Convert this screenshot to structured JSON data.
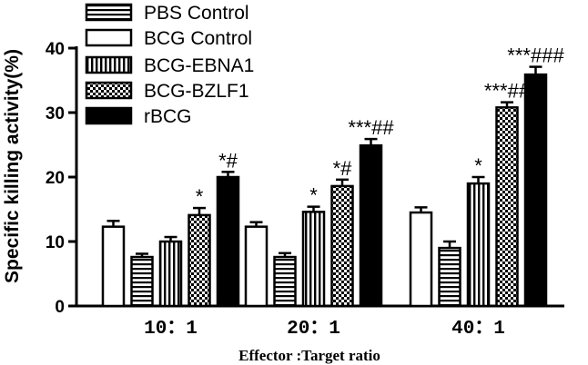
{
  "chart_data": {
    "type": "bar",
    "title": "",
    "xlabel": "Effector :Target ratio",
    "ylabel": "Specific killing activity(%)",
    "ylim": [
      0,
      40
    ],
    "yticks": [
      0,
      10,
      20,
      30,
      40
    ],
    "categories": [
      "10：1",
      "20：1",
      "40：1"
    ],
    "series": [
      {
        "name": "BCG Control",
        "pattern": "white",
        "values": [
          12.3,
          12.3,
          14.5
        ],
        "errors": [
          0.9,
          0.7,
          0.8
        ],
        "annotations": [
          "",
          "",
          ""
        ]
      },
      {
        "name": "PBS Control",
        "pattern": "horizontal-lines",
        "values": [
          7.6,
          7.6,
          9.0
        ],
        "errors": [
          0.5,
          0.6,
          1.0
        ],
        "annotations": [
          "",
          "",
          ""
        ]
      },
      {
        "name": "BCG-EBNA1",
        "pattern": "vertical-lines",
        "values": [
          10.0,
          14.6,
          19.0
        ],
        "errors": [
          0.7,
          0.8,
          1.0
        ],
        "annotations": [
          "",
          "*",
          "*"
        ]
      },
      {
        "name": "BCG-BZLF1",
        "pattern": "checker",
        "values": [
          14.1,
          18.6,
          30.8
        ],
        "errors": [
          1.1,
          1.0,
          0.8
        ],
        "annotations": [
          "*",
          "*#",
          "***##"
        ]
      },
      {
        "name": "rBCG",
        "pattern": "black",
        "values": [
          20.0,
          24.9,
          35.9
        ],
        "errors": [
          0.8,
          1.0,
          1.2
        ],
        "annotations": [
          "*#",
          "***##",
          "***###"
        ]
      }
    ],
    "legend_order": [
      "PBS Control",
      "BCG Control",
      "BCG-EBNA1",
      "BCG-BZLF1",
      "rBCG"
    ],
    "legend_position": "top-left",
    "grid": false
  }
}
